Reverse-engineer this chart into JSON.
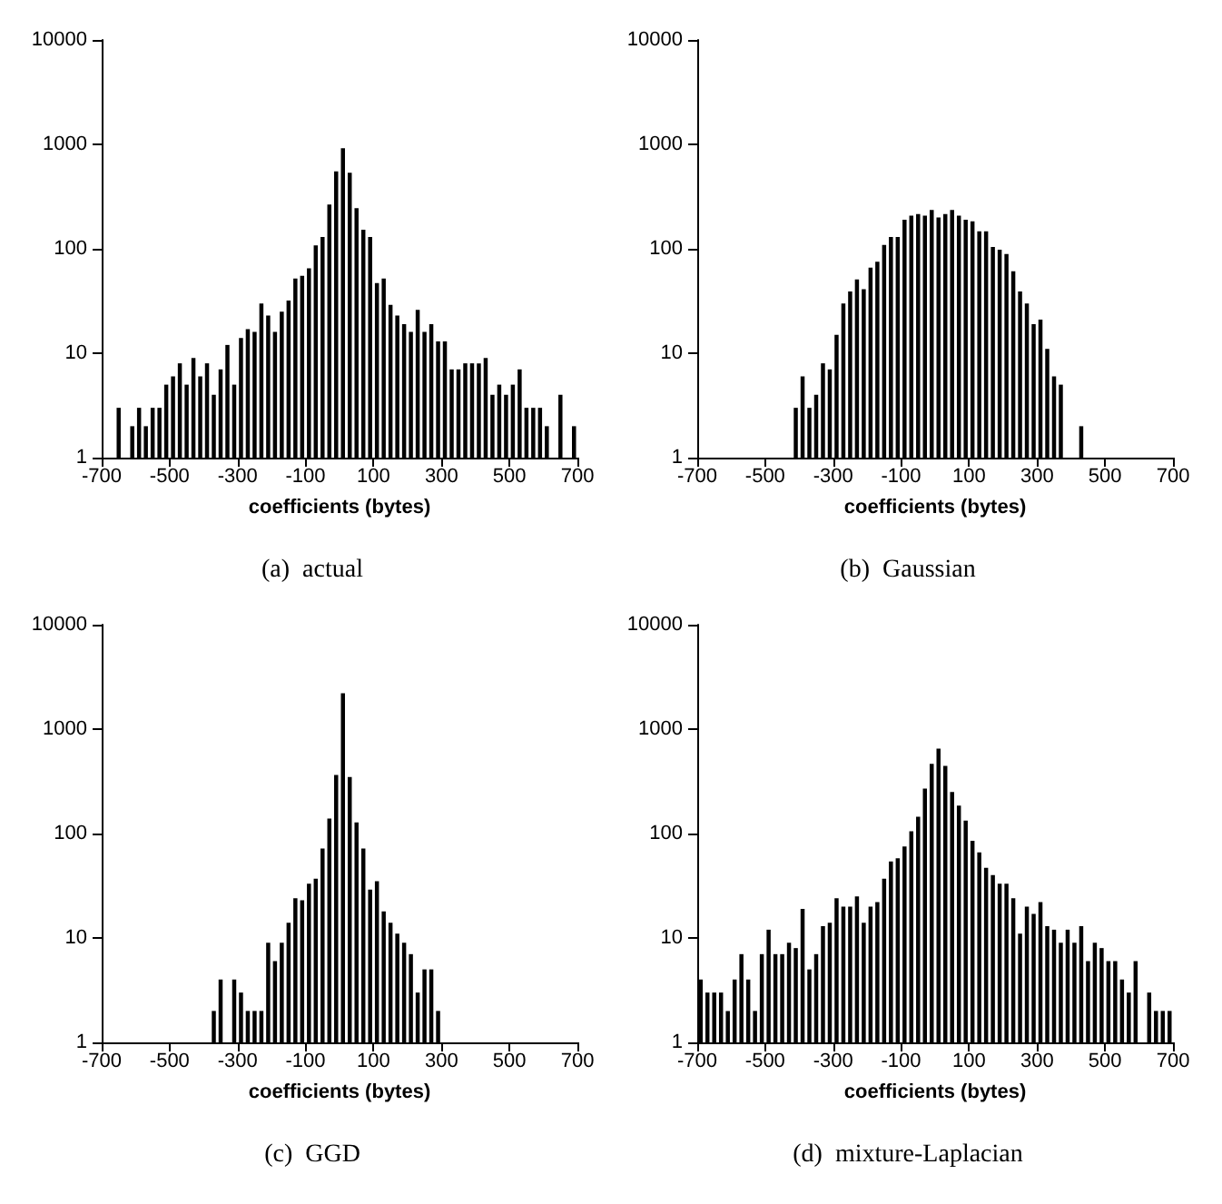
{
  "chart_data": [
    {
      "type": "histogram",
      "title": "(a)  actual",
      "xlabel": "coefficients (bytes)",
      "color": "#000000",
      "log": "y",
      "grid": false,
      "xlim": [
        -700,
        700
      ],
      "xticks": [
        -700,
        -500,
        -300,
        -100,
        100,
        300,
        500,
        700
      ],
      "ylim": [
        1,
        10000
      ],
      "yticks": [
        1,
        10,
        100,
        1000,
        10000
      ],
      "bins": [
        -700,
        -680,
        -660,
        -640,
        -620,
        -600,
        -580,
        -560,
        -540,
        -520,
        -500,
        -480,
        -460,
        -440,
        -420,
        -400,
        -380,
        -360,
        -340,
        -320,
        -300,
        -280,
        -260,
        -240,
        -220,
        -200,
        -180,
        -160,
        -140,
        -120,
        -100,
        -80,
        -60,
        -40,
        -20,
        0,
        20,
        40,
        60,
        80,
        100,
        120,
        140,
        160,
        180,
        200,
        220,
        240,
        260,
        280,
        300,
        320,
        340,
        360,
        380,
        400,
        420,
        440,
        460,
        480,
        500,
        520,
        540,
        560,
        580,
        600,
        620,
        640,
        660,
        680,
        700
      ],
      "values": [
        null,
        null,
        3,
        null,
        2,
        3,
        2,
        3,
        3,
        5,
        6,
        8,
        5,
        9,
        6,
        8,
        4,
        7,
        12,
        5,
        14,
        17,
        16,
        30,
        23,
        16,
        25,
        32,
        52,
        55,
        65,
        108,
        130,
        265,
        550,
        920,
        535,
        245,
        152,
        130,
        47,
        52,
        29,
        23,
        19,
        16,
        26,
        16,
        19,
        13,
        13,
        7,
        7,
        8,
        8,
        8,
        9,
        4,
        5,
        4,
        5,
        7,
        3,
        3,
        3,
        2,
        null,
        4,
        null,
        2
      ]
    },
    {
      "type": "histogram",
      "title": "(b)  Gaussian",
      "xlabel": "coefficients (bytes)",
      "color": "#000000",
      "log": "y",
      "grid": false,
      "xlim": [
        -700,
        700
      ],
      "xticks": [
        -700,
        -500,
        -300,
        -100,
        100,
        300,
        500,
        700
      ],
      "ylim": [
        1,
        10000
      ],
      "yticks": [
        1,
        10,
        100,
        1000,
        10000
      ],
      "bins": [
        -700,
        -680,
        -660,
        -640,
        -620,
        -600,
        -580,
        -560,
        -540,
        -520,
        -500,
        -480,
        -460,
        -440,
        -420,
        -400,
        -380,
        -360,
        -340,
        -320,
        -300,
        -280,
        -260,
        -240,
        -220,
        -200,
        -180,
        -160,
        -140,
        -120,
        -100,
        -80,
        -60,
        -40,
        -20,
        0,
        20,
        40,
        60,
        80,
        100,
        120,
        140,
        160,
        180,
        200,
        220,
        240,
        260,
        280,
        300,
        320,
        340,
        360,
        380,
        400,
        420,
        440,
        460,
        480,
        500,
        520,
        540,
        560,
        580,
        600,
        620,
        640,
        660,
        680,
        700
      ],
      "values": [
        null,
        null,
        null,
        null,
        null,
        null,
        null,
        null,
        null,
        null,
        null,
        null,
        null,
        null,
        3,
        6,
        3,
        4,
        8,
        7,
        15,
        30,
        39,
        51,
        41,
        66,
        75,
        109,
        130,
        130,
        190,
        208,
        215,
        208,
        235,
        200,
        215,
        235,
        208,
        190,
        183,
        147,
        147,
        104,
        98,
        89,
        61,
        39,
        30,
        19,
        21,
        11,
        6,
        5,
        null,
        null,
        2,
        null,
        null,
        null,
        null,
        null,
        null,
        null,
        null,
        null,
        null,
        null,
        null,
        null
      ]
    },
    {
      "type": "histogram",
      "title": "(c)  GGD",
      "xlabel": "coefficients (bytes)",
      "color": "#000000",
      "log": "y",
      "grid": false,
      "xlim": [
        -700,
        700
      ],
      "xticks": [
        -700,
        -500,
        -300,
        -100,
        100,
        300,
        500,
        700
      ],
      "ylim": [
        1,
        10000
      ],
      "yticks": [
        1,
        10,
        100,
        1000,
        10000
      ],
      "bins": [
        -700,
        -680,
        -660,
        -640,
        -620,
        -600,
        -580,
        -560,
        -540,
        -520,
        -500,
        -480,
        -460,
        -440,
        -420,
        -400,
        -380,
        -360,
        -340,
        -320,
        -300,
        -280,
        -260,
        -240,
        -220,
        -200,
        -180,
        -160,
        -140,
        -120,
        -100,
        -80,
        -60,
        -40,
        -20,
        0,
        20,
        40,
        60,
        80,
        100,
        120,
        140,
        160,
        180,
        200,
        220,
        240,
        260,
        280,
        300,
        320,
        340,
        360,
        380,
        400,
        420,
        440,
        460,
        480,
        500,
        520,
        540,
        560,
        580,
        600,
        620,
        640,
        660,
        680,
        700
      ],
      "values": [
        null,
        null,
        null,
        null,
        null,
        null,
        null,
        null,
        null,
        null,
        null,
        null,
        null,
        null,
        null,
        null,
        2,
        4,
        null,
        4,
        3,
        2,
        2,
        2,
        9,
        6,
        9,
        14,
        24,
        23,
        33,
        37,
        72,
        139,
        363,
        2200,
        348,
        128,
        72,
        29,
        35,
        18,
        14,
        11,
        9,
        7,
        3,
        5,
        5,
        2,
        null,
        null,
        null,
        null,
        null,
        null,
        null,
        null,
        null,
        null,
        null,
        null,
        null,
        null,
        null,
        null,
        null,
        null,
        null,
        null
      ]
    },
    {
      "type": "histogram",
      "title": "(d)  mixture-Laplacian",
      "xlabel": "coefficients (bytes)",
      "color": "#000000",
      "log": "y",
      "grid": false,
      "xlim": [
        -700,
        700
      ],
      "xticks": [
        -700,
        -500,
        -300,
        -100,
        100,
        300,
        500,
        700
      ],
      "ylim": [
        1,
        10000
      ],
      "yticks": [
        1,
        10,
        100,
        1000,
        10000
      ],
      "bins": [
        -700,
        -680,
        -660,
        -640,
        -620,
        -600,
        -580,
        -560,
        -540,
        -520,
        -500,
        -480,
        -460,
        -440,
        -420,
        -400,
        -380,
        -360,
        -340,
        -320,
        -300,
        -280,
        -260,
        -240,
        -220,
        -200,
        -180,
        -160,
        -140,
        -120,
        -100,
        -80,
        -60,
        -40,
        -20,
        0,
        20,
        40,
        60,
        80,
        100,
        120,
        140,
        160,
        180,
        200,
        220,
        240,
        260,
        280,
        300,
        320,
        340,
        360,
        380,
        400,
        420,
        440,
        460,
        480,
        500,
        520,
        540,
        560,
        580,
        600,
        620,
        640,
        660,
        680,
        700
      ],
      "values": [
        4,
        3,
        3,
        3,
        2,
        4,
        7,
        4,
        2,
        7,
        12,
        7,
        7,
        9,
        8,
        19,
        5,
        7,
        13,
        14,
        24,
        20,
        20,
        25,
        14,
        20,
        22,
        37,
        54,
        58,
        75,
        105,
        145,
        270,
        465,
        650,
        445,
        250,
        185,
        133,
        85,
        66,
        47,
        40,
        33,
        33,
        24,
        11,
        20,
        17,
        22,
        13,
        12,
        9,
        12,
        9,
        13,
        6,
        9,
        8,
        6,
        6,
        4,
        3,
        6,
        null,
        3,
        2,
        2,
        2
      ]
    }
  ]
}
